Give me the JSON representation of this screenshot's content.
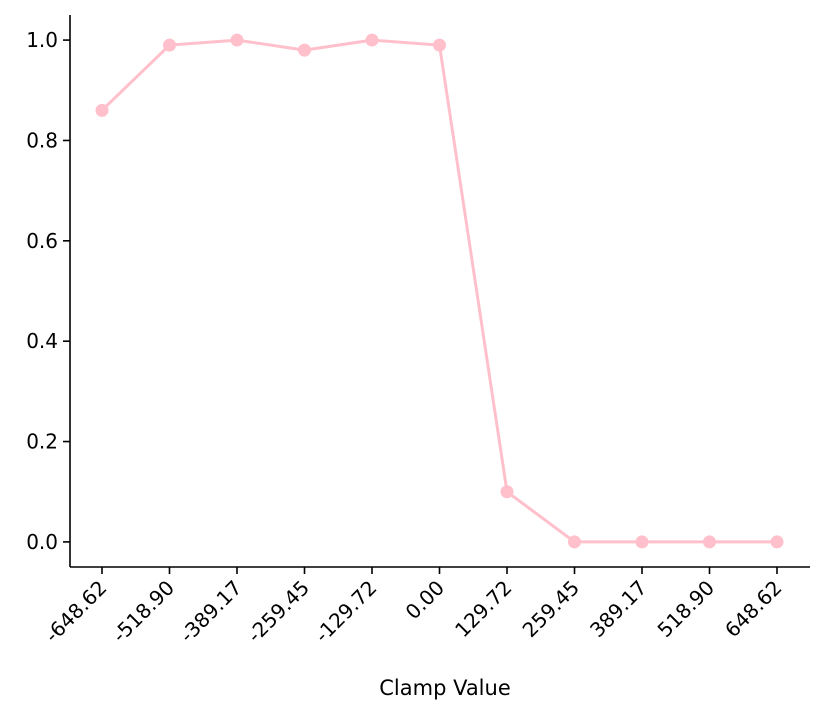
{
  "chart_data": {
    "type": "line",
    "title": "",
    "xlabel": "Clamp Value",
    "ylabel": "",
    "categories": [
      "-648.62",
      "-518.90",
      "-389.17",
      "-259.45",
      "-129.72",
      "0.00",
      "129.72",
      "259.45",
      "389.17",
      "518.90",
      "648.62"
    ],
    "series": [
      {
        "values": [
          0.86,
          0.99,
          1.0,
          0.98,
          1.0,
          0.99,
          0.1,
          0.0,
          0.0,
          0.0,
          0.0
        ],
        "color": "#ffc0cb",
        "marker": "circle"
      }
    ],
    "yticks": [
      "0.0",
      "0.2",
      "0.4",
      "0.6",
      "0.8",
      "1.0"
    ],
    "ylim": [
      -0.05,
      1.05
    ],
    "grid": false,
    "legend": "none",
    "spines": "left-bottom"
  }
}
